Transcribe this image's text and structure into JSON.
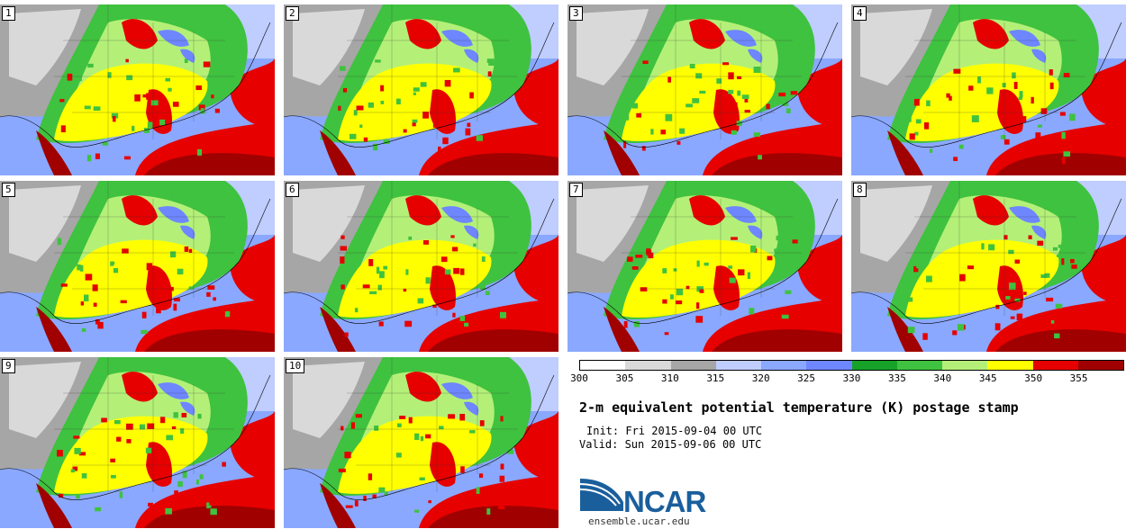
{
  "panels": [
    {
      "label": "1"
    },
    {
      "label": "2"
    },
    {
      "label": "3"
    },
    {
      "label": "4"
    },
    {
      "label": "5"
    },
    {
      "label": "6"
    },
    {
      "label": "7"
    },
    {
      "label": "8"
    },
    {
      "label": "9"
    },
    {
      "label": "10"
    }
  ],
  "colorbar": {
    "ticks": [
      "300",
      "305",
      "310",
      "315",
      "320",
      "325",
      "330",
      "335",
      "340",
      "345",
      "350",
      "355"
    ],
    "colors": [
      "#ffffff",
      "#d9d9d9",
      "#a6a6a6",
      "#bfcdff",
      "#8aa8ff",
      "#6e86ff",
      "#16a229",
      "#3fc23f",
      "#b4f078",
      "#ffff00",
      "#e60000",
      "#a00000"
    ]
  },
  "title": "2-m equivalent potential temperature (K) postage stamp",
  "init": "Init: Fri 2015-09-04 00 UTC",
  "valid": "Valid: Sun 2015-09-06 00 UTC",
  "logo": {
    "name": "NCAR",
    "url": "ensemble.ucar.edu"
  }
}
